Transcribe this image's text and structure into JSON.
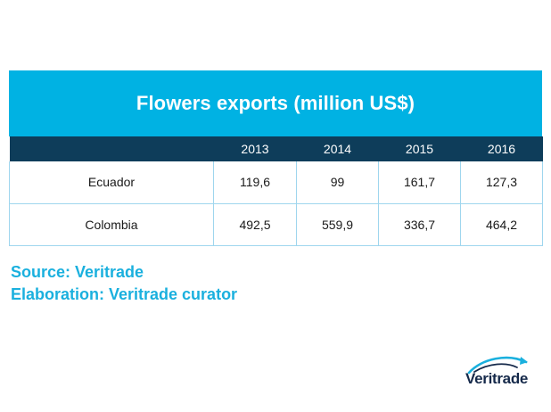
{
  "chart_data": {
    "type": "table",
    "title": "Flowers exports (million US$)",
    "columns": [
      "",
      "2013",
      "2014",
      "2015",
      "2016"
    ],
    "rows": [
      {
        "label": "Ecuador",
        "values": [
          "119,6",
          "99",
          "161,7",
          "127,3"
        ]
      },
      {
        "label": "Colombia",
        "values": [
          "492,5",
          "559,9",
          "336,7",
          "464,2"
        ]
      }
    ]
  },
  "footer": {
    "source": "Source: Veritrade",
    "elaboration": "Elaboration: Veritrade curator"
  },
  "logo": {
    "text": "Veritrade",
    "icon": "veritrade-swoosh-icon"
  },
  "colors": {
    "title_bg": "#00b2e3",
    "header_bg": "#0e3d5a",
    "border": "#9fd6ee",
    "footer_text": "#1ab0de",
    "logo_text": "#15294a"
  }
}
